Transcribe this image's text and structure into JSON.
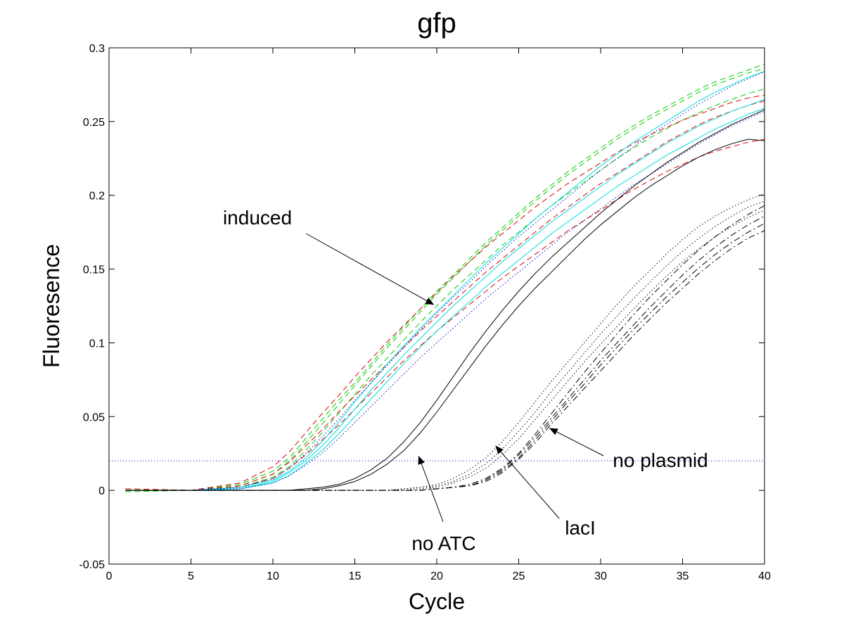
{
  "chart_data": {
    "type": "line",
    "title": "gfp",
    "xlabel": "Cycle",
    "ylabel": "Fluoresence",
    "xlim": [
      0,
      40
    ],
    "ylim": [
      -0.05,
      0.3
    ],
    "xticks": [
      0,
      5,
      10,
      15,
      20,
      25,
      30,
      35,
      40
    ],
    "yticks": [
      -0.05,
      0,
      0.05,
      0.1,
      0.15,
      0.2,
      0.25,
      0.3
    ],
    "grid": false,
    "threshold": 0.02,
    "x": [
      1,
      5,
      8,
      10,
      11,
      12,
      13,
      14,
      15,
      16,
      17,
      18,
      19,
      20,
      21,
      22,
      23,
      24,
      25,
      26,
      27,
      28,
      29,
      30,
      31,
      32,
      33,
      34,
      35,
      36,
      37,
      38,
      39,
      40
    ],
    "series": [
      {
        "group": "induced",
        "color": "#00cc00",
        "dash": "dashed",
        "values": [
          0.001,
          0.0,
          0.004,
          0.013,
          0.022,
          0.035,
          0.048,
          0.061,
          0.073,
          0.086,
          0.099,
          0.111,
          0.123,
          0.135,
          0.146,
          0.157,
          0.168,
          0.178,
          0.188,
          0.198,
          0.207,
          0.216,
          0.224,
          0.232,
          0.24,
          0.247,
          0.254,
          0.26,
          0.266,
          0.272,
          0.277,
          0.281,
          0.285,
          0.289
        ]
      },
      {
        "group": "induced",
        "color": "#00cc00",
        "dash": "dashed",
        "values": [
          0.001,
          0.0,
          0.003,
          0.011,
          0.02,
          0.032,
          0.045,
          0.058,
          0.071,
          0.084,
          0.097,
          0.109,
          0.121,
          0.133,
          0.144,
          0.155,
          0.166,
          0.176,
          0.186,
          0.196,
          0.205,
          0.214,
          0.222,
          0.23,
          0.238,
          0.245,
          0.252,
          0.258,
          0.264,
          0.27,
          0.275,
          0.279,
          0.283,
          0.286
        ]
      },
      {
        "group": "induced",
        "color": "#00cc00",
        "dash": "dashed",
        "values": [
          -0.001,
          0.0,
          0.002,
          0.009,
          0.016,
          0.027,
          0.039,
          0.052,
          0.065,
          0.078,
          0.09,
          0.102,
          0.114,
          0.125,
          0.136,
          0.146,
          0.156,
          0.166,
          0.175,
          0.184,
          0.193,
          0.201,
          0.209,
          0.217,
          0.225,
          0.232,
          0.239,
          0.245,
          0.251,
          0.256,
          0.261,
          0.265,
          0.269,
          0.272
        ]
      },
      {
        "group": "induced",
        "color": "#dd0000",
        "dash": "dashed",
        "values": [
          0.001,
          0.0,
          0.005,
          0.016,
          0.026,
          0.039,
          0.052,
          0.064,
          0.077,
          0.089,
          0.101,
          0.112,
          0.123,
          0.134,
          0.145,
          0.155,
          0.165,
          0.174,
          0.183,
          0.192,
          0.2,
          0.208,
          0.215,
          0.222,
          0.229,
          0.235,
          0.241,
          0.246,
          0.251,
          0.255,
          0.259,
          0.263,
          0.266,
          0.268
        ]
      },
      {
        "group": "induced",
        "color": "#dd0000",
        "dash": "dashed",
        "values": [
          0.0,
          0.0,
          0.003,
          0.011,
          0.019,
          0.03,
          0.041,
          0.053,
          0.064,
          0.075,
          0.086,
          0.097,
          0.108,
          0.118,
          0.128,
          0.138,
          0.148,
          0.157,
          0.166,
          0.175,
          0.184,
          0.192,
          0.2,
          0.208,
          0.215,
          0.222,
          0.229,
          0.236,
          0.242,
          0.248,
          0.253,
          0.257,
          0.261,
          0.264
        ]
      },
      {
        "group": "induced",
        "color": "#dd0000",
        "dash": "dashed",
        "values": [
          0.0,
          0.0,
          0.002,
          0.008,
          0.015,
          0.024,
          0.034,
          0.044,
          0.055,
          0.066,
          0.077,
          0.088,
          0.098,
          0.108,
          0.117,
          0.126,
          0.135,
          0.144,
          0.152,
          0.16,
          0.168,
          0.176,
          0.183,
          0.19,
          0.197,
          0.204,
          0.21,
          0.216,
          0.221,
          0.226,
          0.23,
          0.233,
          0.236,
          0.238
        ]
      },
      {
        "group": "induced",
        "color": "#00dddd",
        "dash": "solid",
        "values": [
          0.0,
          0.0,
          0.002,
          0.007,
          0.013,
          0.022,
          0.033,
          0.046,
          0.06,
          0.073,
          0.086,
          0.098,
          0.11,
          0.121,
          0.132,
          0.143,
          0.154,
          0.164,
          0.174,
          0.184,
          0.193,
          0.202,
          0.211,
          0.22,
          0.228,
          0.236,
          0.243,
          0.25,
          0.257,
          0.264,
          0.27,
          0.275,
          0.28,
          0.284
        ]
      },
      {
        "group": "induced",
        "color": "#00dddd",
        "dash": "solid",
        "values": [
          0.0,
          0.0,
          0.001,
          0.006,
          0.012,
          0.02,
          0.03,
          0.042,
          0.055,
          0.068,
          0.08,
          0.092,
          0.103,
          0.114,
          0.125,
          0.135,
          0.145,
          0.155,
          0.164,
          0.173,
          0.182,
          0.19,
          0.198,
          0.206,
          0.214,
          0.221,
          0.228,
          0.235,
          0.241,
          0.247,
          0.252,
          0.257,
          0.261,
          0.265
        ]
      },
      {
        "group": "induced",
        "color": "#00dddd",
        "dash": "solid",
        "values": [
          0.0,
          0.0,
          0.001,
          0.005,
          0.01,
          0.018,
          0.027,
          0.038,
          0.05,
          0.062,
          0.074,
          0.086,
          0.097,
          0.108,
          0.118,
          0.128,
          0.138,
          0.147,
          0.156,
          0.165,
          0.174,
          0.182,
          0.19,
          0.198,
          0.206,
          0.213,
          0.22,
          0.227,
          0.233,
          0.239,
          0.245,
          0.25,
          0.255,
          0.259
        ]
      },
      {
        "group": "induced",
        "color": "#0000cc",
        "dash": "dotted",
        "values": [
          0.0,
          0.0,
          0.002,
          0.008,
          0.015,
          0.025,
          0.036,
          0.048,
          0.061,
          0.073,
          0.085,
          0.097,
          0.109,
          0.12,
          0.131,
          0.141,
          0.152,
          0.162,
          0.172,
          0.181,
          0.19,
          0.199,
          0.208,
          0.217,
          0.225,
          0.233,
          0.241,
          0.248,
          0.255,
          0.262,
          0.268,
          0.274,
          0.279,
          0.284
        ]
      },
      {
        "group": "induced",
        "color": "#0000cc",
        "dash": "dotted",
        "values": [
          0.0,
          0.0,
          0.001,
          0.005,
          0.01,
          0.017,
          0.025,
          0.035,
          0.046,
          0.057,
          0.068,
          0.079,
          0.09,
          0.1,
          0.11,
          0.12,
          0.13,
          0.139,
          0.148,
          0.157,
          0.166,
          0.175,
          0.183,
          0.191,
          0.199,
          0.207,
          0.214,
          0.221,
          0.228,
          0.235,
          0.241,
          0.247,
          0.252,
          0.257
        ]
      },
      {
        "group": "no ATC",
        "color": "#000000",
        "dash": "solid",
        "values": [
          0.0,
          0.0,
          0.0,
          0.0,
          0.0,
          0.001,
          0.002,
          0.004,
          0.008,
          0.014,
          0.022,
          0.033,
          0.046,
          0.061,
          0.077,
          0.093,
          0.108,
          0.122,
          0.135,
          0.147,
          0.158,
          0.168,
          0.178,
          0.188,
          0.197,
          0.206,
          0.214,
          0.222,
          0.229,
          0.236,
          0.242,
          0.248,
          0.253,
          0.258
        ]
      },
      {
        "group": "no ATC",
        "color": "#000000",
        "dash": "solid",
        "values": [
          0.0,
          0.0,
          0.0,
          0.0,
          0.0,
          0.0,
          0.001,
          0.003,
          0.006,
          0.011,
          0.018,
          0.027,
          0.039,
          0.053,
          0.068,
          0.083,
          0.098,
          0.112,
          0.125,
          0.137,
          0.148,
          0.159,
          0.17,
          0.18,
          0.189,
          0.198,
          0.206,
          0.213,
          0.22,
          0.226,
          0.231,
          0.235,
          0.238,
          0.237
        ]
      },
      {
        "group": "lacI",
        "color": "#000000",
        "dash": "dotted",
        "values": [
          0.0,
          0.0,
          0.0,
          0.0,
          0.0,
          0.0,
          0.0,
          0.0,
          0.0,
          0.0,
          0.0,
          0.001,
          0.002,
          0.004,
          0.008,
          0.014,
          0.022,
          0.033,
          0.046,
          0.06,
          0.074,
          0.087,
          0.1,
          0.113,
          0.126,
          0.138,
          0.149,
          0.16,
          0.17,
          0.179,
          0.186,
          0.192,
          0.197,
          0.201
        ]
      },
      {
        "group": "lacI",
        "color": "#000000",
        "dash": "dotted",
        "values": [
          0.0,
          0.0,
          0.0,
          0.0,
          0.0,
          0.0,
          0.0,
          0.0,
          0.0,
          0.0,
          0.0,
          0.001,
          0.002,
          0.003,
          0.006,
          0.011,
          0.018,
          0.028,
          0.04,
          0.053,
          0.067,
          0.08,
          0.093,
          0.106,
          0.118,
          0.13,
          0.141,
          0.152,
          0.162,
          0.171,
          0.179,
          0.186,
          0.192,
          0.196
        ]
      },
      {
        "group": "lacI",
        "color": "#000000",
        "dash": "dotted",
        "values": [
          0.0,
          0.0,
          0.0,
          0.0,
          0.0,
          0.0,
          0.0,
          0.0,
          0.0,
          0.0,
          0.0,
          0.0,
          0.001,
          0.002,
          0.005,
          0.009,
          0.015,
          0.024,
          0.035,
          0.048,
          0.061,
          0.074,
          0.087,
          0.099,
          0.111,
          0.123,
          0.134,
          0.145,
          0.155,
          0.164,
          0.172,
          0.179,
          0.185,
          0.19
        ]
      },
      {
        "group": "no plasmid",
        "color": "#000000",
        "dash": "dashdot",
        "values": [
          0.0,
          0.0,
          0.0,
          0.0,
          0.0,
          0.0,
          0.0,
          0.0,
          0.0,
          0.0,
          0.0,
          0.0,
          0.0,
          0.001,
          0.002,
          0.004,
          0.008,
          0.015,
          0.025,
          0.038,
          0.052,
          0.066,
          0.08,
          0.093,
          0.106,
          0.119,
          0.131,
          0.142,
          0.153,
          0.163,
          0.172,
          0.18,
          0.187,
          0.193
        ]
      },
      {
        "group": "no plasmid",
        "color": "#000000",
        "dash": "dashdot",
        "values": [
          0.0,
          0.0,
          0.0,
          0.0,
          0.0,
          0.0,
          0.0,
          0.0,
          0.0,
          0.0,
          0.0,
          0.0,
          0.0,
          0.001,
          0.002,
          0.004,
          0.008,
          0.014,
          0.024,
          0.036,
          0.049,
          0.062,
          0.075,
          0.088,
          0.1,
          0.112,
          0.124,
          0.135,
          0.146,
          0.156,
          0.165,
          0.173,
          0.18,
          0.186
        ]
      },
      {
        "group": "no plasmid",
        "color": "#000000",
        "dash": "dashdot",
        "values": [
          0.0,
          0.0,
          0.0,
          0.0,
          0.0,
          0.0,
          0.0,
          0.0,
          0.0,
          0.0,
          0.0,
          0.0,
          0.0,
          0.001,
          0.002,
          0.003,
          0.007,
          0.013,
          0.022,
          0.034,
          0.047,
          0.06,
          0.072,
          0.085,
          0.097,
          0.109,
          0.12,
          0.131,
          0.141,
          0.151,
          0.16,
          0.168,
          0.175,
          0.181
        ]
      },
      {
        "group": "no plasmid",
        "color": "#000000",
        "dash": "dashdot",
        "values": [
          0.0,
          0.0,
          0.0,
          0.0,
          0.0,
          0.0,
          0.0,
          0.0,
          0.0,
          0.0,
          0.0,
          0.0,
          0.0,
          0.001,
          0.002,
          0.003,
          0.006,
          0.012,
          0.021,
          0.032,
          0.045,
          0.057,
          0.069,
          0.081,
          0.093,
          0.105,
          0.116,
          0.127,
          0.137,
          0.147,
          0.156,
          0.164,
          0.171,
          0.176
        ]
      }
    ],
    "annotations": [
      {
        "text": "induced",
        "arrow_to": [
          19.8,
          0.126
        ]
      },
      {
        "text": "no ATC",
        "arrow_to": [
          18.9,
          0.023
        ]
      },
      {
        "text": "lacI",
        "arrow_to": [
          23.6,
          0.03
        ]
      },
      {
        "text": "no plasmid",
        "arrow_to": [
          26.9,
          0.042
        ]
      }
    ]
  }
}
